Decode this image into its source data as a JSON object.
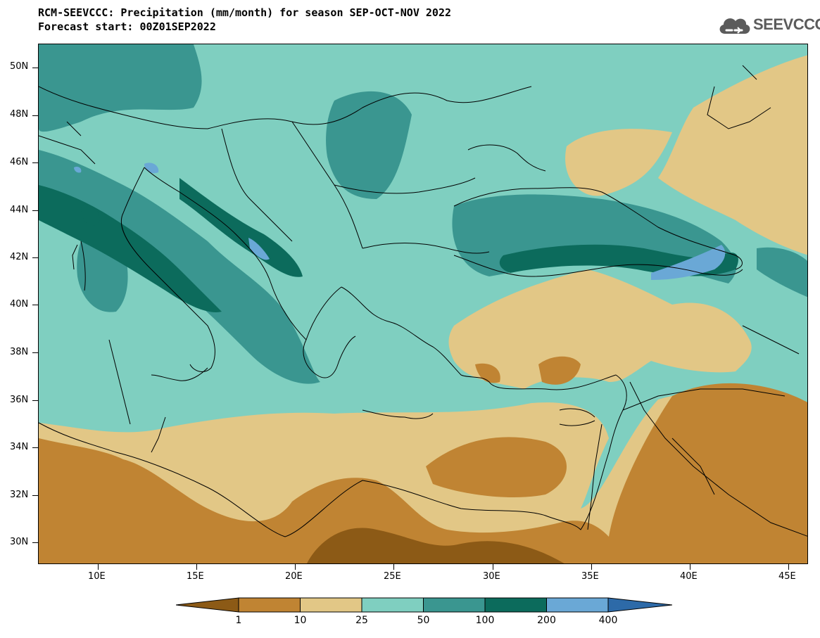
{
  "header": {
    "title_line1": "RCM-SEEVCCC: Precipitation (mm/month) for season SEP-OCT-NOV 2022",
    "title_line2": "Forecast start: 00Z01SEP2022"
  },
  "logo": {
    "text": "SEEVCCC",
    "icon": "cloud-icon"
  },
  "map": {
    "variable": "Precipitation",
    "units": "mm/month",
    "season": "SEP-OCT-NOV 2022",
    "lat_labels": [
      "50N",
      "48N",
      "46N",
      "44N",
      "42N",
      "40N",
      "38N",
      "36N",
      "34N",
      "32N",
      "30N"
    ],
    "lon_labels": [
      "10E",
      "15E",
      "20E",
      "25E",
      "30E",
      "35E",
      "40E",
      "45E"
    ]
  },
  "legend": {
    "levels": [
      "1",
      "10",
      "25",
      "50",
      "100",
      "200",
      "400"
    ],
    "colors": [
      "#8c5a16",
      "#c08433",
      "#e2c786",
      "#7fcfc0",
      "#3a9690",
      "#0c6b5c",
      "#6aa8d6",
      "#2d6aa8"
    ]
  }
}
